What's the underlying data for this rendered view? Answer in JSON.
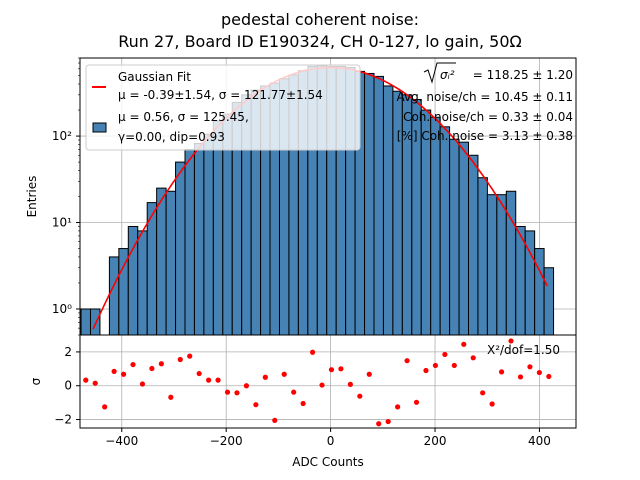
{
  "chart_data": {
    "type": "bar",
    "title_line1": "pedestal coherent noise:",
    "title_line2": "Run 27, Board ID E190324, CH 0-127, lo gain, 50Ω",
    "main_panel": {
      "ylabel": "Entries",
      "yscale": "log",
      "ylim": [
        0.5,
        800
      ],
      "yticks": [
        {
          "value": 1,
          "label": "10⁰"
        },
        {
          "value": 10,
          "label": "10¹"
        },
        {
          "value": 100,
          "label": "10²"
        }
      ],
      "grid": true,
      "histogram": {
        "bin_start": -478,
        "bin_width": 18.1,
        "counts": [
          1,
          1,
          0,
          4,
          5,
          9,
          8,
          17,
          25,
          23,
          50,
          70,
          82,
          105,
          150,
          180,
          245,
          300,
          340,
          380,
          410,
          460,
          510,
          570,
          640,
          650,
          640,
          640,
          620,
          560,
          530,
          490,
          380,
          330,
          300,
          265,
          200,
          165,
          128,
          92,
          85,
          60,
          33,
          21,
          21,
          23,
          9,
          8,
          5,
          3
        ],
        "color": "#4682b4",
        "edgecolor": "#000000"
      },
      "fit": {
        "label": "Gaussian Fit",
        "mu": -0.39,
        "sigma": 121.77,
        "amplitude": 620,
        "x_range": [
          -455,
          415
        ],
        "color": "#ff0000"
      },
      "legend": {
        "placement": "upper-left",
        "entries": [
          {
            "marker": "line",
            "color": "#ff0000",
            "lines": [
              "Gaussian Fit",
              "μ = -0.39±1.54, σ = 121.77±1.54"
            ]
          },
          {
            "marker": "patch",
            "color": "#4682b4",
            "lines": [
              "μ = 0.56, σ = 125.45,",
              "γ=0.00, dip=0.93"
            ]
          }
        ]
      },
      "annotations": [
        {
          "prefix_sqrt": "σᵢ²",
          "text": " = 118.25 ± 1.20"
        },
        {
          "text": "Avg. noise/ch = 10.45 ± 0.11"
        },
        {
          "text": "Coh. noise/ch = 0.33 ± 0.04"
        },
        {
          "text": "[%] Coh. noise = 3.13  ± 0.38"
        }
      ]
    },
    "residual_panel": {
      "ylabel": "σ",
      "ylim": [
        -2.5,
        3.0
      ],
      "yticks": [
        -2,
        0,
        2
      ],
      "grid": true,
      "values": [
        0.33,
        0.15,
        -1.25,
        0.85,
        0.68,
        1.25,
        0.1,
        1.02,
        1.3,
        -0.68,
        1.55,
        1.75,
        0.72,
        0.33,
        0.33,
        -0.38,
        -0.42,
        0.0,
        -1.12,
        0.5,
        -2.05,
        0.68,
        -0.38,
        -1.05,
        1.98,
        0.04,
        0.95,
        1.0,
        0.08,
        -0.62,
        0.68,
        -2.25,
        -2.12,
        -1.25,
        1.48,
        -0.98,
        0.9,
        1.2,
        1.85,
        1.2,
        2.45,
        1.65,
        -0.42,
        -1.08,
        0.82,
        2.65,
        0.52,
        1.12,
        0.78,
        0.55
      ],
      "marker_color": "#ff0000",
      "annotation": "X²/dof=1.50"
    },
    "xlabel": "ADC Counts",
    "xlim": [
      -480,
      470
    ],
    "xticks": [
      -400,
      -200,
      0,
      200,
      400
    ],
    "xtick_labels": [
      "−400",
      "−200",
      "0",
      "200",
      "400"
    ]
  }
}
